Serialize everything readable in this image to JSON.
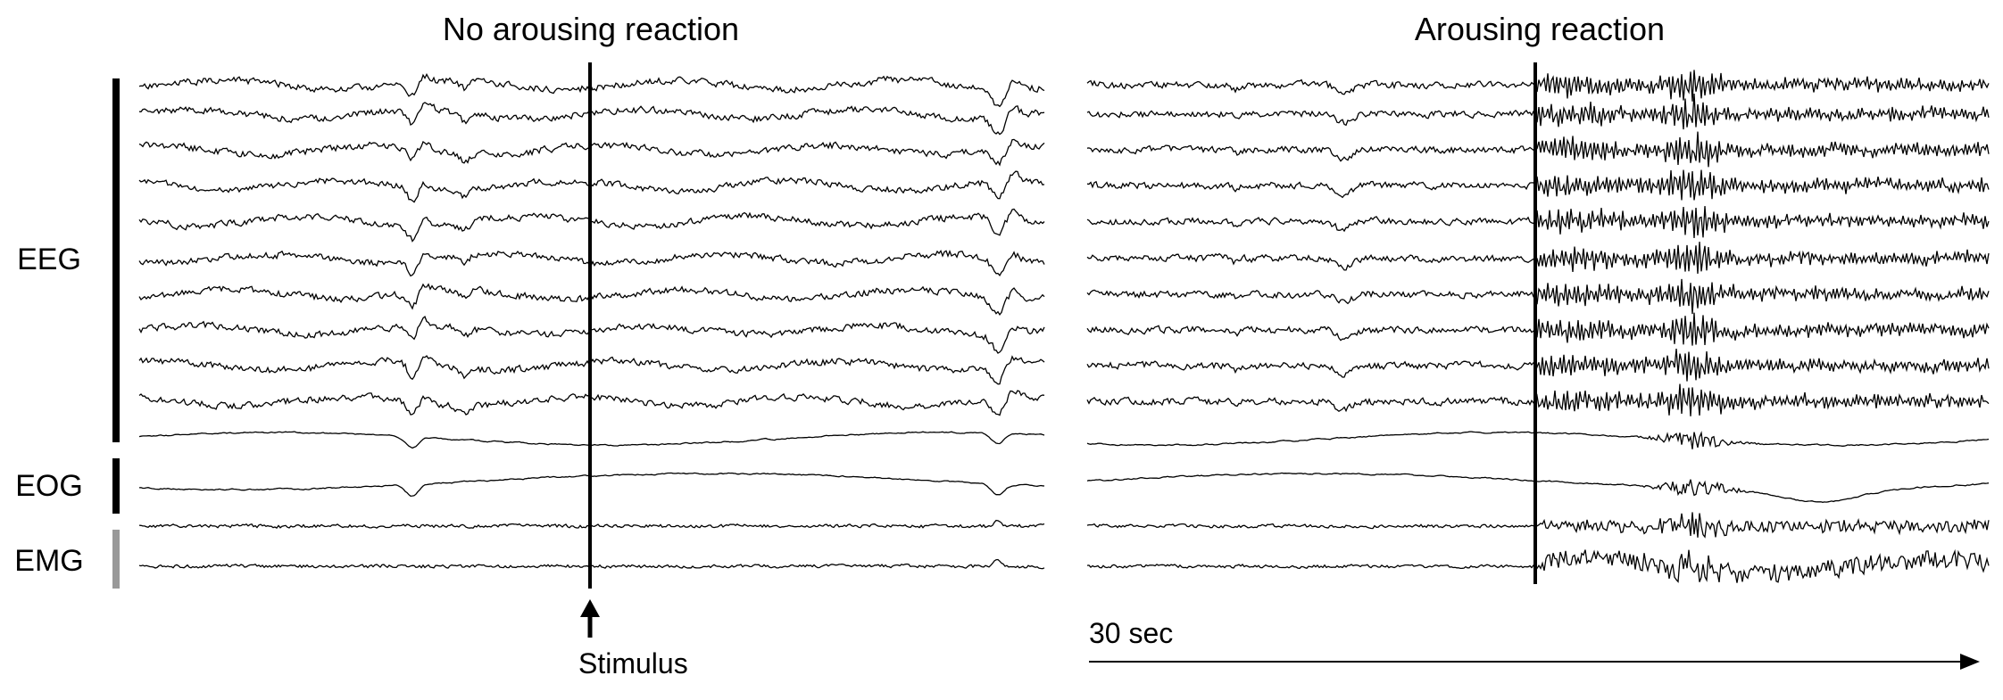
{
  "panels": [
    {
      "title": "No arousing reaction",
      "stimulus_label": "Stimulus",
      "trace_style": "non-aroused",
      "trace_seeds": [
        11,
        12,
        13,
        14,
        15,
        16,
        17,
        18,
        19,
        20,
        21,
        22,
        23,
        24
      ]
    },
    {
      "title": "Arousing reaction",
      "time_scale_label": "30 sec",
      "trace_style": "aroused",
      "trace_seeds": [
        31,
        32,
        33,
        34,
        35,
        36,
        37,
        38,
        39,
        40,
        41,
        42,
        43,
        44
      ]
    }
  ],
  "channel_groups": [
    {
      "label": "EEG",
      "channel_count": 10,
      "bar_color": "#000000"
    },
    {
      "label": "EOG",
      "channel_count": 2,
      "bar_color": "#000000"
    },
    {
      "label": "EMG",
      "channel_count": 2,
      "bar_color": "#999999"
    }
  ],
  "icons": {
    "stimulus_arrow": "up-arrow-icon",
    "time_arrow": "right-arrow-icon"
  }
}
